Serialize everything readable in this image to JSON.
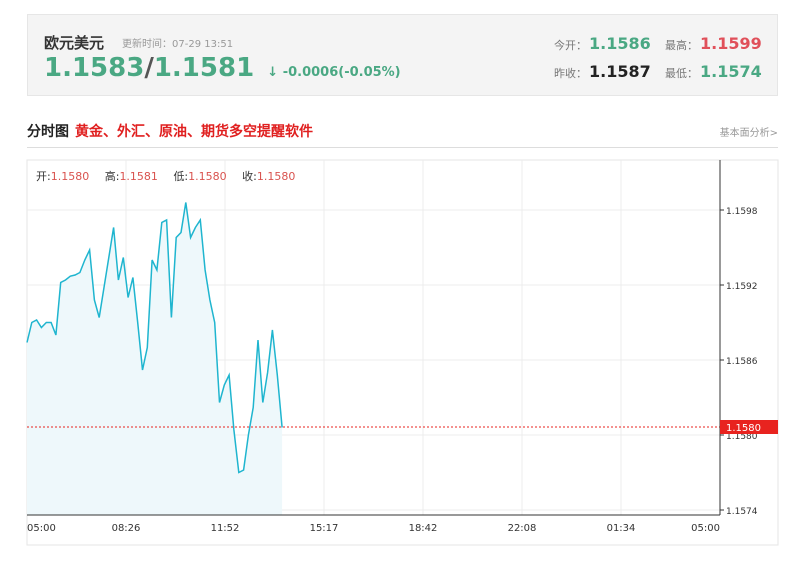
{
  "quote": {
    "name": "欧元美元",
    "update_label": "更新时间：",
    "update_time": "07-29 13:51",
    "bid": "1.1583",
    "separator": "/",
    "ask": "1.1581",
    "arrow": "↓",
    "change": "-0.0006(-0.05%)",
    "open_label": "今开：",
    "open": "1.1586",
    "high_label": "最高：",
    "high": "1.1599",
    "prev_close_label": "昨收：",
    "prev_close": "1.1587",
    "low_label": "最低：",
    "low": "1.1574"
  },
  "section": {
    "title": "分时图",
    "promo": "黄金、外汇、原油、期货多空提醒软件",
    "fundamental_link": "基本面分析>"
  },
  "ohlc": {
    "open_label": "开:",
    "open": "1.1580",
    "high_label": "高:",
    "high": "1.1581",
    "low_label": "低:",
    "low": "1.1580",
    "close_label": "收:",
    "close": "1.1580"
  },
  "colors": {
    "line": "#1fb5cf",
    "fill": "#eef8fb",
    "up": "#e0505a",
    "down": "#4aa883",
    "current_tag": "#e8231f"
  },
  "chart_data": {
    "type": "area",
    "current_value": "1.1580",
    "ylim": [
      1.15736,
      1.1602
    ],
    "y_ticks": [
      "1.1598",
      "1.1592",
      "1.1586",
      "1.1580",
      "1.1574"
    ],
    "x_ticks": [
      "05:00",
      "08:26",
      "11:52",
      "15:17",
      "18:42",
      "22:08",
      "01:34",
      "05:00"
    ],
    "x": [
      "05:00",
      "05:10",
      "05:20",
      "05:30",
      "05:40",
      "05:50",
      "06:00",
      "06:10",
      "06:20",
      "06:30",
      "06:40",
      "06:50",
      "07:00",
      "07:10",
      "07:20",
      "07:30",
      "07:40",
      "07:50",
      "08:00",
      "08:10",
      "08:20",
      "08:30",
      "08:40",
      "08:50",
      "09:00",
      "09:10",
      "09:20",
      "09:30",
      "09:40",
      "09:50",
      "10:00",
      "10:10",
      "10:20",
      "10:30",
      "10:40",
      "10:50",
      "11:00",
      "11:10",
      "11:20",
      "11:30",
      "11:40",
      "11:50",
      "12:00",
      "12:10",
      "12:20",
      "12:30",
      "12:40",
      "12:50",
      "13:00",
      "13:10",
      "13:20",
      "13:30",
      "13:40",
      "13:50"
    ],
    "y": [
      1.15874,
      1.1589,
      1.15892,
      1.15886,
      1.1589,
      1.1589,
      1.1588,
      1.15922,
      1.15924,
      1.15927,
      1.15928,
      1.1593,
      1.1594,
      1.15948,
      1.15908,
      1.15894,
      1.15918,
      1.15942,
      1.15966,
      1.15924,
      1.15942,
      1.1591,
      1.15926,
      1.1589,
      1.15852,
      1.1587,
      1.1594,
      1.15932,
      1.1597,
      1.15972,
      1.15894,
      1.15958,
      1.15962,
      1.15986,
      1.15958,
      1.15966,
      1.15972,
      1.15932,
      1.15908,
      1.1589,
      1.15826,
      1.1584,
      1.15848,
      1.15804,
      1.1577,
      1.15772,
      1.158,
      1.15822,
      1.15876,
      1.15826,
      1.1585,
      1.15884,
      1.15848,
      1.15806
    ]
  }
}
